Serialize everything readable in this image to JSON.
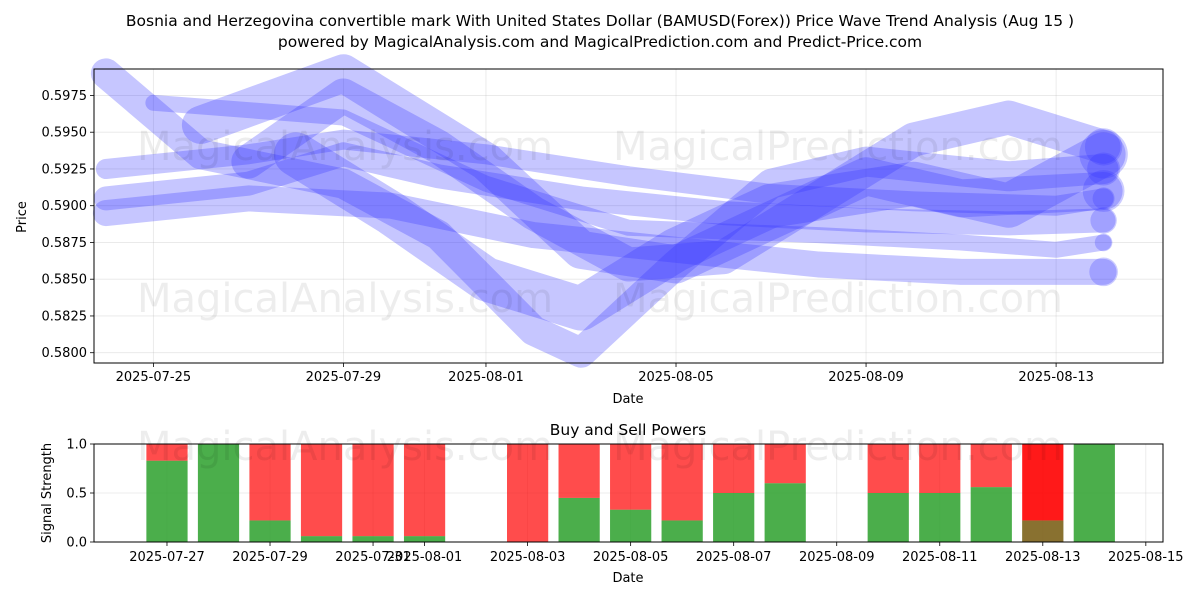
{
  "title": {
    "line1": "Bosnia and Herzegovina convertible mark With United States Dollar (BAMUSD(Forex)) Price Wave Trend Analysis (Aug 15 )",
    "line2": "powered by MagicalAnalysis.com and MagicalPrediction.com and Predict-Price.com"
  },
  "watermarks": [
    "MagicalAnalysis.com",
    "MagicalPrediction.com"
  ],
  "colors": {
    "wave": "#3333ff",
    "buy": "#2ca02c",
    "sell": "#ff0000"
  },
  "chart_data": [
    {
      "type": "line",
      "xlabel": "Date",
      "ylabel": "Price",
      "ylim": [
        0.5793,
        0.5993
      ],
      "x_range": [
        "2025-07-23T18:00",
        "2025-08-15T06:00"
      ],
      "x_ticks": [
        "2025-07-25",
        "2025-07-29",
        "2025-08-01",
        "2025-08-05",
        "2025-08-09",
        "2025-08-13"
      ],
      "y_ticks": [
        "0.5800",
        "0.5825",
        "0.5850",
        "0.5875",
        "0.5900",
        "0.5925",
        "0.5950",
        "0.5975"
      ],
      "grid": true,
      "series": [
        {
          "x": [
            "2025-07-24",
            "2025-07-27",
            "2025-07-29",
            "2025-07-31",
            "2025-08-03",
            "2025-08-06",
            "2025-08-09",
            "2025-08-12",
            "2025-08-14"
          ],
          "values": [
            0.5905,
            0.5915,
            0.5935,
            0.592,
            0.5905,
            0.5895,
            0.589,
            0.5888,
            0.589
          ]
        },
        {
          "x": [
            "2025-07-24",
            "2025-07-27",
            "2025-07-29",
            "2025-08-01",
            "2025-08-04",
            "2025-08-07",
            "2025-08-10",
            "2025-08-13",
            "2025-08-14"
          ],
          "values": [
            0.5925,
            0.5935,
            0.5945,
            0.5935,
            0.592,
            0.5908,
            0.5903,
            0.59,
            0.5905
          ]
        },
        {
          "x": [
            "2025-07-25",
            "2025-07-29",
            "2025-08-01",
            "2025-08-04",
            "2025-08-08",
            "2025-08-11",
            "2025-08-13",
            "2025-08-14"
          ],
          "values": [
            0.597,
            0.596,
            0.5915,
            0.5885,
            0.588,
            0.5875,
            0.587,
            0.5875
          ]
        },
        {
          "x": [
            "2025-07-24",
            "2025-07-27",
            "2025-07-30",
            "2025-08-02",
            "2025-08-05",
            "2025-08-08",
            "2025-08-11",
            "2025-08-14"
          ],
          "values": [
            0.5895,
            0.5905,
            0.59,
            0.588,
            0.587,
            0.586,
            0.5855,
            0.5855
          ]
        },
        {
          "x": [
            "2025-07-24",
            "2025-07-26",
            "2025-07-29",
            "2025-07-31",
            "2025-08-02",
            "2025-08-03",
            "2025-08-05",
            "2025-08-07",
            "2025-08-09",
            "2025-08-12",
            "2025-08-14"
          ],
          "values": [
            0.599,
            0.5935,
            0.5915,
            0.588,
            0.5815,
            0.58,
            0.586,
            0.5915,
            0.593,
            0.592,
            0.5925
          ]
        },
        {
          "x": [
            "2025-07-27",
            "2025-07-29",
            "2025-07-31",
            "2025-08-02",
            "2025-08-04",
            "2025-08-06",
            "2025-08-08",
            "2025-08-10",
            "2025-08-12",
            "2025-08-14"
          ],
          "values": [
            0.593,
            0.5975,
            0.594,
            0.5895,
            0.586,
            0.5865,
            0.5905,
            0.5945,
            0.596,
            0.594
          ]
        },
        {
          "x": [
            "2025-07-26",
            "2025-07-29",
            "2025-08-01",
            "2025-08-03",
            "2025-08-05",
            "2025-08-07",
            "2025-08-09",
            "2025-08-11",
            "2025-08-14"
          ],
          "values": [
            0.5955,
            0.599,
            0.593,
            0.587,
            0.586,
            0.589,
            0.592,
            0.5905,
            0.591
          ]
        },
        {
          "x": [
            "2025-07-28",
            "2025-07-30",
            "2025-08-01",
            "2025-08-03",
            "2025-08-05",
            "2025-08-07",
            "2025-08-10",
            "2025-08-12",
            "2025-08-14"
          ],
          "values": [
            0.5935,
            0.5895,
            0.585,
            0.583,
            0.587,
            0.59,
            0.5915,
            0.59,
            0.5935
          ]
        }
      ]
    },
    {
      "type": "bar",
      "title": "Buy and Sell Powers",
      "xlabel": "Date",
      "ylabel": "Signal Strength",
      "ylim": [
        0,
        1.0
      ],
      "x_range": [
        "2025-07-25T14:00",
        "2025-08-15T08:00"
      ],
      "x_ticks": [
        "2025-07-27",
        "2025-07-29",
        "2025-07-31",
        "2025-08-01",
        "2025-08-03",
        "2025-08-05",
        "2025-08-07",
        "2025-08-09",
        "2025-08-11",
        "2025-08-13",
        "2025-08-15"
      ],
      "y_ticks": [
        "0.0",
        "0.5",
        "1.0"
      ],
      "grid": true,
      "bars": [
        {
          "date": "2025-07-27",
          "buy": 0.83,
          "sell": 0.17
        },
        {
          "date": "2025-07-28",
          "buy": 1.0,
          "sell": 0.0
        },
        {
          "date": "2025-07-29",
          "buy": 0.22,
          "sell": 0.78
        },
        {
          "date": "2025-07-30",
          "buy": 0.06,
          "sell": 0.94
        },
        {
          "date": "2025-07-31",
          "buy": 0.06,
          "sell": 0.94
        },
        {
          "date": "2025-08-01",
          "buy": 0.06,
          "sell": 0.94
        },
        {
          "date": "2025-08-03",
          "buy": 0.0,
          "sell": 1.0
        },
        {
          "date": "2025-08-04",
          "buy": 0.45,
          "sell": 0.55
        },
        {
          "date": "2025-08-05",
          "buy": 0.33,
          "sell": 0.67
        },
        {
          "date": "2025-08-06",
          "buy": 0.22,
          "sell": 0.78
        },
        {
          "date": "2025-08-07",
          "buy": 0.5,
          "sell": 0.5
        },
        {
          "date": "2025-08-08",
          "buy": 0.6,
          "sell": 0.4
        },
        {
          "date": "2025-08-10",
          "buy": 0.5,
          "sell": 0.5
        },
        {
          "date": "2025-08-11",
          "buy": 0.5,
          "sell": 0.5
        },
        {
          "date": "2025-08-12",
          "buy": 0.56,
          "sell": 0.44
        },
        {
          "date": "2025-08-13",
          "buy": 0.22,
          "sell": 0.78,
          "highlight": true
        },
        {
          "date": "2025-08-14",
          "buy": 1.0,
          "sell": 0.0
        }
      ]
    }
  ]
}
